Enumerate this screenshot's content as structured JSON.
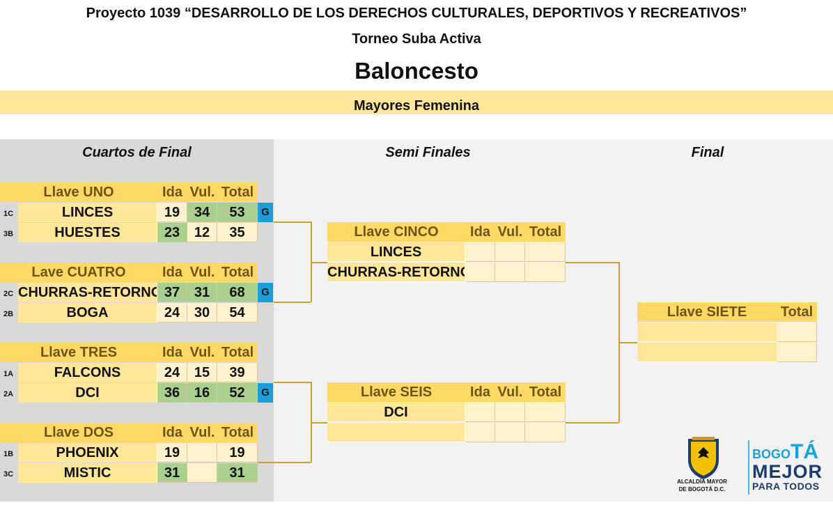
{
  "header": {
    "project": "Proyecto 1039 “DESARROLLO DE LOS DERECHOS CULTURALES, DEPORTIVOS Y RECREATIVOS”",
    "tournament": "Torneo Suba Activa",
    "sport": "Baloncesto",
    "category": "Mayores Femenina"
  },
  "rounds": {
    "quarter": "Cuartos de Final",
    "semi": "Semi Finales",
    "final": "Final"
  },
  "columns": {
    "ida": "Ida",
    "vuelta": "Vul.",
    "total": "Total"
  },
  "winner_mark": "G",
  "quarter_finals": [
    {
      "label": "Llave UNO",
      "teams": [
        {
          "seed": "1C",
          "name": "LINCES",
          "ida": "19",
          "vuelta": "34",
          "total": "53"
        },
        {
          "seed": "3B",
          "name": "HUESTES",
          "ida": "23",
          "vuelta": "12",
          "total": "35"
        }
      ]
    },
    {
      "label": "Lave CUATRO",
      "teams": [
        {
          "seed": "2C",
          "name": "CHURRAS-RETORNO",
          "ida": "37",
          "vuelta": "31",
          "total": "68"
        },
        {
          "seed": "2B",
          "name": "BOGA",
          "ida": "24",
          "vuelta": "30",
          "total": "54"
        }
      ]
    },
    {
      "label": "Llave TRES",
      "teams": [
        {
          "seed": "1A",
          "name": "FALCONS",
          "ida": "24",
          "vuelta": "15",
          "total": "39"
        },
        {
          "seed": "2A",
          "name": "DCI",
          "ida": "36",
          "vuelta": "16",
          "total": "52"
        }
      ]
    },
    {
      "label": "Llave DOS",
      "teams": [
        {
          "seed": "1B",
          "name": "PHOENIX",
          "ida": "19",
          "vuelta": "",
          "total": "19"
        },
        {
          "seed": "3C",
          "name": "MISTIC",
          "ida": "31",
          "vuelta": "",
          "total": "31"
        }
      ]
    }
  ],
  "semi_finals": [
    {
      "label": "Llave CINCO",
      "teams": [
        "LINCES",
        "CHURRAS-RETORNO"
      ]
    },
    {
      "label": "Llave SEIS",
      "teams": [
        "DCI",
        ""
      ]
    }
  ],
  "final": {
    "label": "Llave SIETE",
    "total": "Total"
  },
  "logo": {
    "alcaldia_line1": "ALCALDÍA MAYOR",
    "alcaldia_line2": "DE BOGOTÁ D.C.",
    "brand_bogo": "BOGO",
    "brand_ta": "TÁ",
    "brand_mejor": "MEJOR",
    "brand_para": "PARA TODOS",
    "colors": {
      "blue": "#1a9fdb",
      "navy": "#1c3b6f",
      "gold": "#c99a1e"
    }
  }
}
